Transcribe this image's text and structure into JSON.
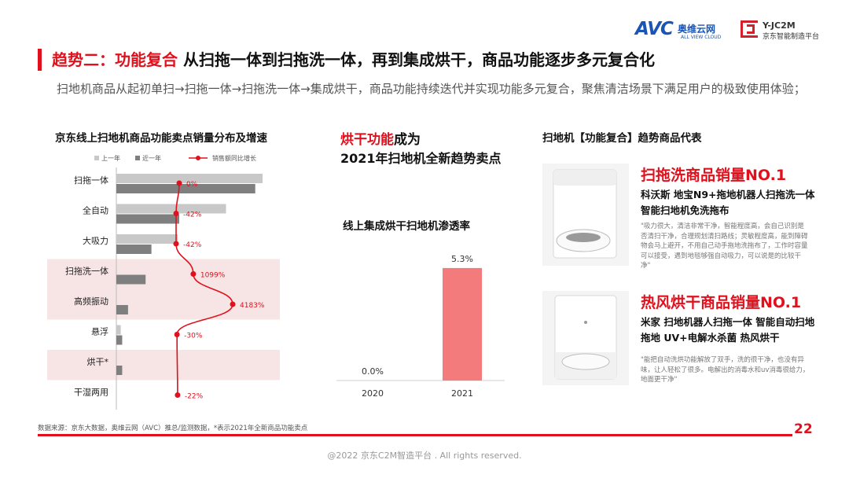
{
  "header": {
    "title_accent": "趋势二：功能复合",
    "title_rest": " 从扫拖一体到扫拖洗一体，再到集成烘干，商品功能逐步多元复合化",
    "subtitle": "扫地机商品从起初单扫→扫拖一体→扫拖洗一体→集成烘干，商品功能持续迭代并实现功能多元复合，聚焦清洁场景下满足用户的极致使用体验；"
  },
  "logos": {
    "avc_big": "AVC",
    "avc_cn": "奥维云网",
    "avc_en": "ALL VIEW CLOUD",
    "jc_t1": "Y-JC2M",
    "jc_t2": "京东智能制造平台"
  },
  "left_chart": {
    "title": "京东线上扫地机商品功能卖点销量分布及增速"
  },
  "middle": {
    "headline_red": "烘干功能",
    "headline_rest": "成为",
    "headline_line2": "2021年扫地机全新趋势卖点",
    "pen_title": "线上集成烘干扫地机渗透率"
  },
  "right": {
    "title": "扫地机【功能复合】趋势商品代表",
    "products": [
      {
        "head": "扫拖洗商品销量NO.1",
        "name": "科沃斯 地宝N9+拖地机器人扫拖洗一体智能扫地机免洗拖布",
        "quote": "\"吸力很大，清洁非常干净，智能程度高，会自己识别是否清扫干净，合理规划清扫路线；灵敏程度高，能到障碍物会马上避开，不用自己动手拖地洗拖布了，工作时容量可以接受，遇到地毯够强自动吸力，可以说是的比较干净\""
      },
      {
        "head": "热风烘干商品销量NO.1",
        "name": "米家 扫地机器人扫拖一体 智能自动扫地拖地 UV+电解水杀菌 热风烘干",
        "quote": "\"能把自动洗烘功能解放了双手，洗的很干净，也没有异味，让人轻松了很多。电解出的消毒水和uv消毒很给力，地面更干净\""
      }
    ]
  },
  "footer": {
    "source": "数据来源：京东大数据，奥维云网（AVC）推总/监测数据，*表示2021年全新商品功能卖点",
    "page": "22",
    "copyright": "@2022 京东C2M智造平台 . All rights reserved."
  },
  "colors": {
    "accent": "#e0101c",
    "bar_prev": "#c8c8c8",
    "bar_recent": "#7f7f7f",
    "highlight": "#f7e4e4",
    "pen_bar": "#f47b7b"
  },
  "chart_data": [
    {
      "type": "bar",
      "orientation": "horizontal",
      "categories": [
        "扫拖一体",
        "全自动",
        "大吸力",
        "扫拖洗一体",
        "高频振动",
        "悬浮",
        "烘干*",
        "干湿两用"
      ],
      "series": [
        {
          "name": "上一年",
          "values": [
            100,
            75,
            42,
            0,
            0,
            3,
            0,
            0
          ]
        },
        {
          "name": "近一年",
          "values": [
            95,
            43,
            24,
            20,
            8,
            4,
            4,
            0
          ]
        },
        {
          "name": "销售额同比增长",
          "type": "line",
          "values": [
            0,
            -42,
            -42,
            1099,
            4183,
            -30,
            null,
            -22
          ],
          "labels": [
            "0%",
            "-42%",
            "-42%",
            "1099%",
            "4183%",
            "-30%",
            "",
            "-22%"
          ]
        }
      ],
      "highlighted_categories": [
        "扫拖洗一体",
        "高频振动",
        "烘干*"
      ],
      "legend": "top"
    },
    {
      "type": "bar",
      "categories": [
        "2020",
        "2021"
      ],
      "values": [
        0.0,
        5.3
      ],
      "labels": [
        "0.0%",
        "5.3%"
      ],
      "ylim": [
        0,
        6
      ]
    }
  ]
}
